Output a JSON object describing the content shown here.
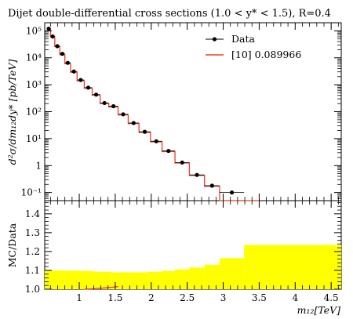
{
  "chart_data": [
    {
      "type": "line",
      "title": "Dijet double-differential cross sections (1.0 < y* < 1.5), R=0.4",
      "ylabel": "d²σ/dm₁₂dy* [pb/TeV]",
      "yscale": "log",
      "xlim": [
        0.52,
        4.64
      ],
      "ylim": [
        0.05,
        200000
      ],
      "ytick_labels": [
        "10⁵",
        "10⁴",
        "10³",
        "10²",
        "10¹",
        "1",
        "10⁻¹"
      ],
      "ytick_values": [
        100000,
        10000,
        1000,
        100,
        10,
        1,
        0.1
      ],
      "legend_position": "top-right",
      "legend": [
        "Data",
        "[10] 0.089966"
      ],
      "bin_edges": [
        0.55,
        0.6,
        0.66,
        0.73,
        0.8,
        0.88,
        0.97,
        1.07,
        1.18,
        1.29,
        1.41,
        1.54,
        1.68,
        1.83,
        1.99,
        2.15,
        2.33,
        2.53,
        2.74,
        2.95,
        3.29,
        3.5
      ],
      "series": [
        {
          "name": "Data",
          "x": [
            0.575,
            0.63,
            0.695,
            0.765,
            0.84,
            0.925,
            1.02,
            1.125,
            1.235,
            1.35,
            1.475,
            1.61,
            1.755,
            1.91,
            2.07,
            2.24,
            2.43,
            2.635,
            2.845,
            3.12
          ],
          "y": [
            120000,
            62000,
            27000,
            14000,
            6500,
            3100,
            1500,
            780,
            430,
            210,
            160,
            80,
            38,
            18,
            8,
            3.5,
            1.3,
            0.45,
            0.18,
            0.1
          ]
        },
        {
          "name": "[10] 0.089966",
          "y": [
            120000,
            60000,
            26000,
            13000,
            6000,
            2900,
            1400,
            740,
            410,
            200,
            150,
            76,
            36,
            17,
            7.6,
            3.3,
            1.25,
            0.43,
            0.17,
            0.05,
            0.04
          ]
        }
      ],
      "grid": false
    },
    {
      "type": "area",
      "xlabel": "m₁₂[TeV]",
      "ylabel": "MC/Data",
      "xlim": [
        0.52,
        4.64
      ],
      "ylim": [
        1.0,
        1.47
      ],
      "xtick_labels": [
        "1",
        "1.5",
        "2",
        "2.5",
        "3",
        "3.5",
        "4",
        "4.5"
      ],
      "xtick_values": [
        1,
        1.5,
        2,
        2.5,
        3,
        3.5,
        4,
        4.5
      ],
      "ytick_labels": [
        "1.0",
        "1.1",
        "1.2",
        "1.3",
        "1.4"
      ],
      "ytick_values": [
        1.0,
        1.1,
        1.2,
        1.3,
        1.4
      ],
      "band_edges": [
        0.52,
        0.6,
        0.8,
        1.0,
        1.2,
        1.45,
        1.7,
        1.95,
        2.15,
        2.33,
        2.53,
        2.74,
        2.95,
        3.29,
        4.64
      ],
      "band_upper": [
        1.1,
        1.1,
        1.099,
        1.097,
        1.093,
        1.09,
        1.09,
        1.093,
        1.097,
        1.105,
        1.115,
        1.13,
        1.165,
        1.235
      ],
      "band_color": "#ffff00",
      "ratio_x": [
        1.07,
        1.18,
        1.29,
        1.41,
        1.54
      ],
      "ratio_y": [
        1.0,
        1.002,
        1.005,
        1.009,
        1.014
      ],
      "line_color": "#e8402a",
      "grid": false
    }
  ]
}
